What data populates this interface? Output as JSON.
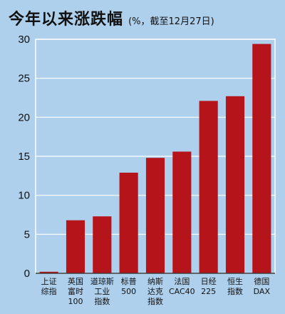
{
  "chart_data": {
    "type": "bar",
    "title": "今年以来涨跌幅",
    "subtitle": "(%，截至12月27日)",
    "categories": [
      [
        "上证",
        "综指"
      ],
      [
        "英国",
        "富时",
        "100"
      ],
      [
        "道琼斯",
        "工业",
        "指数"
      ],
      [
        "标普",
        "500"
      ],
      [
        "纳斯",
        "达克",
        "指数"
      ],
      [
        "法国",
        "CAC40"
      ],
      [
        "日经",
        "225"
      ],
      [
        "恒生",
        "指数"
      ],
      [
        "德国",
        "DAX"
      ]
    ],
    "values": [
      0.2,
      6.8,
      7.3,
      12.9,
      14.8,
      15.6,
      22.1,
      22.7,
      29.4
    ],
    "ylim": [
      0,
      30
    ],
    "yticks": [
      0,
      5,
      10,
      15,
      20,
      25,
      30
    ],
    "grid": true,
    "colors": {
      "bar": "#b5141b",
      "grid": "#ffffff",
      "background": "#aed0ec"
    }
  }
}
